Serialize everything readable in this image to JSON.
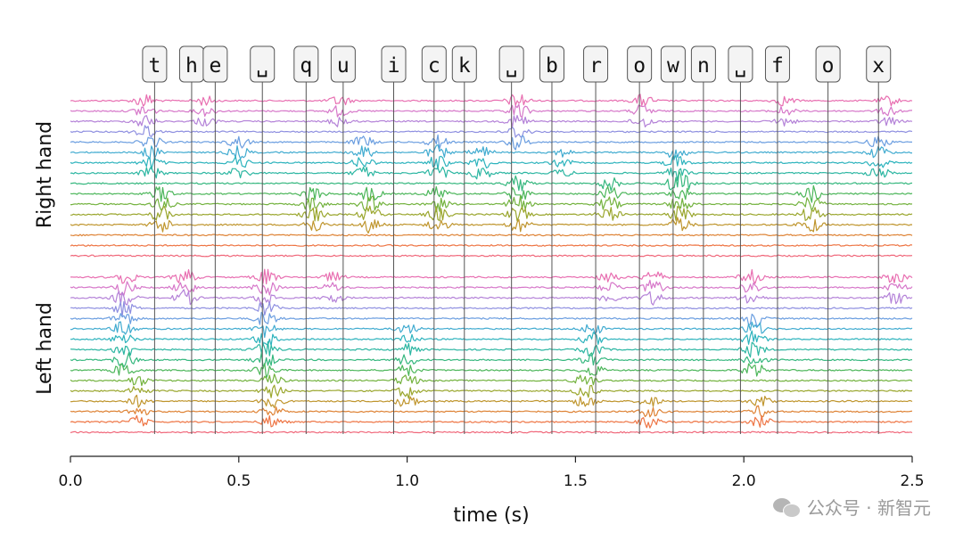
{
  "chart_data": {
    "type": "line",
    "xlabel": "time (s)",
    "ylabel": "",
    "xlim": [
      0.0,
      2.5
    ],
    "x_ticks": [
      {
        "value": 0.0,
        "label": "0.0"
      },
      {
        "value": 0.5,
        "label": "0.5"
      },
      {
        "value": 1.0,
        "label": "1.0"
      },
      {
        "value": 1.5,
        "label": "1.5"
      },
      {
        "value": 2.0,
        "label": "2.0"
      },
      {
        "value": 2.5,
        "label": "2.5"
      }
    ],
    "keystrokes": [
      {
        "key": "t",
        "time": 0.25
      },
      {
        "key": "h",
        "time": 0.36
      },
      {
        "key": "e",
        "time": 0.43
      },
      {
        "key": "␣",
        "time": 0.57
      },
      {
        "key": "q",
        "time": 0.7
      },
      {
        "key": "u",
        "time": 0.81
      },
      {
        "key": "i",
        "time": 0.96
      },
      {
        "key": "c",
        "time": 1.08
      },
      {
        "key": "k",
        "time": 1.17
      },
      {
        "key": "␣",
        "time": 1.31
      },
      {
        "key": "b",
        "time": 1.43
      },
      {
        "key": "r",
        "time": 1.56
      },
      {
        "key": "o",
        "time": 1.69
      },
      {
        "key": "w",
        "time": 1.79
      },
      {
        "key": "n",
        "time": 1.88
      },
      {
        "key": "␣",
        "time": 1.99
      },
      {
        "key": "f",
        "time": 2.1
      },
      {
        "key": "o",
        "time": 2.25
      },
      {
        "key": "x",
        "time": 2.4
      }
    ],
    "groups": [
      {
        "label": "Right hand",
        "channels": 16,
        "bursts": [
          {
            "t": 0.22,
            "ch": [
              0,
              3
            ],
            "a": 0.9
          },
          {
            "t": 0.4,
            "ch": [
              0,
              2
            ],
            "a": 0.6
          },
          {
            "t": 0.8,
            "ch": [
              0,
              2
            ],
            "a": 0.7
          },
          {
            "t": 1.33,
            "ch": [
              0,
              4
            ],
            "a": 1.0
          },
          {
            "t": 1.7,
            "ch": [
              0,
              2
            ],
            "a": 0.8
          },
          {
            "t": 2.12,
            "ch": [
              0,
              2
            ],
            "a": 0.6
          },
          {
            "t": 2.43,
            "ch": [
              0,
              2
            ],
            "a": 0.6
          },
          {
            "t": 0.24,
            "ch": [
              4,
              7
            ],
            "a": 0.8
          },
          {
            "t": 0.5,
            "ch": [
              4,
              7
            ],
            "a": 0.8
          },
          {
            "t": 0.87,
            "ch": [
              4,
              7
            ],
            "a": 0.8
          },
          {
            "t": 1.09,
            "ch": [
              4,
              7
            ],
            "a": 0.9
          },
          {
            "t": 1.22,
            "ch": [
              5,
              7
            ],
            "a": 0.8
          },
          {
            "t": 1.46,
            "ch": [
              5,
              7
            ],
            "a": 0.5
          },
          {
            "t": 1.8,
            "ch": [
              5,
              8
            ],
            "a": 0.9
          },
          {
            "t": 2.4,
            "ch": [
              4,
              7
            ],
            "a": 0.8
          },
          {
            "t": 0.27,
            "ch": [
              9,
              12
            ],
            "a": 1.0
          },
          {
            "t": 0.72,
            "ch": [
              9,
              12
            ],
            "a": 1.0
          },
          {
            "t": 0.89,
            "ch": [
              9,
              12
            ],
            "a": 1.0
          },
          {
            "t": 1.09,
            "ch": [
              9,
              12
            ],
            "a": 0.9
          },
          {
            "t": 1.33,
            "ch": [
              8,
              12
            ],
            "a": 1.0
          },
          {
            "t": 1.6,
            "ch": [
              8,
              11
            ],
            "a": 0.9
          },
          {
            "t": 1.81,
            "ch": [
              8,
              12
            ],
            "a": 1.0
          },
          {
            "t": 2.2,
            "ch": [
              9,
              12
            ],
            "a": 1.0
          }
        ]
      },
      {
        "label": "Left hand",
        "channels": 16,
        "bursts": [
          {
            "t": 0.16,
            "ch": [
              0,
              3
            ],
            "a": 1.0
          },
          {
            "t": 0.34,
            "ch": [
              0,
              2
            ],
            "a": 1.0
          },
          {
            "t": 0.58,
            "ch": [
              0,
              3
            ],
            "a": 1.0
          },
          {
            "t": 0.78,
            "ch": [
              0,
              2
            ],
            "a": 0.6
          },
          {
            "t": 1.6,
            "ch": [
              0,
              2
            ],
            "a": 0.7
          },
          {
            "t": 1.73,
            "ch": [
              0,
              2
            ],
            "a": 0.9
          },
          {
            "t": 2.02,
            "ch": [
              0,
              2
            ],
            "a": 0.9
          },
          {
            "t": 2.45,
            "ch": [
              0,
              2
            ],
            "a": 0.8
          },
          {
            "t": 0.16,
            "ch": [
              4,
              9
            ],
            "a": 1.0
          },
          {
            "t": 0.58,
            "ch": [
              4,
              9
            ],
            "a": 1.0
          },
          {
            "t": 1.0,
            "ch": [
              5,
              9
            ],
            "a": 0.7
          },
          {
            "t": 1.55,
            "ch": [
              5,
              9
            ],
            "a": 0.8
          },
          {
            "t": 2.03,
            "ch": [
              4,
              9
            ],
            "a": 1.0
          },
          {
            "t": 0.2,
            "ch": [
              10,
              14
            ],
            "a": 0.7
          },
          {
            "t": 0.6,
            "ch": [
              10,
              14
            ],
            "a": 0.8
          },
          {
            "t": 1.0,
            "ch": [
              10,
              12
            ],
            "a": 0.9
          },
          {
            "t": 1.53,
            "ch": [
              10,
              12
            ],
            "a": 0.9
          },
          {
            "t": 1.72,
            "ch": [
              12,
              14
            ],
            "a": 0.7
          },
          {
            "t": 2.05,
            "ch": [
              12,
              14
            ],
            "a": 0.7
          }
        ]
      }
    ],
    "colors": [
      "#e86fb1",
      "#d677c9",
      "#b482d8",
      "#8e8fe0",
      "#6b9ee0",
      "#41abd0",
      "#2db3bd",
      "#2cb6a2",
      "#35b77e",
      "#4cb65a",
      "#73b23e",
      "#9aa62d",
      "#bf952d",
      "#de8234",
      "#ee7443",
      "#f0677a"
    ]
  },
  "watermark": "公众号 · 新智元"
}
